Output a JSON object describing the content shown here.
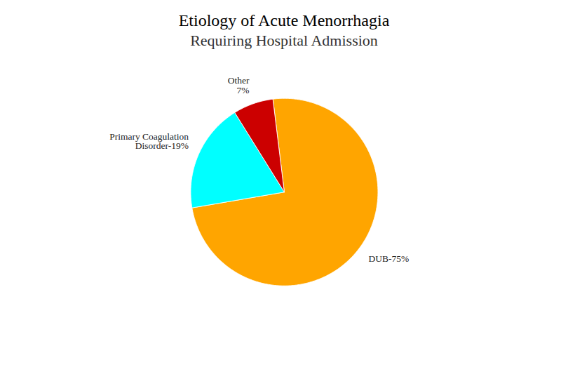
{
  "chart_data": {
    "type": "pie",
    "title": "Etiology of Acute Menorrhagia",
    "subtitle": "Requiring Hospital Admission",
    "values": [
      75,
      19,
      7
    ],
    "value_labels": [
      "DUB-75%",
      "Primary Coagulation\nDisorder-19%",
      "Other\n7%"
    ],
    "colors": [
      "#FFA500",
      "#00FFFF",
      "#CC0000"
    ],
    "data_labels": true
  }
}
